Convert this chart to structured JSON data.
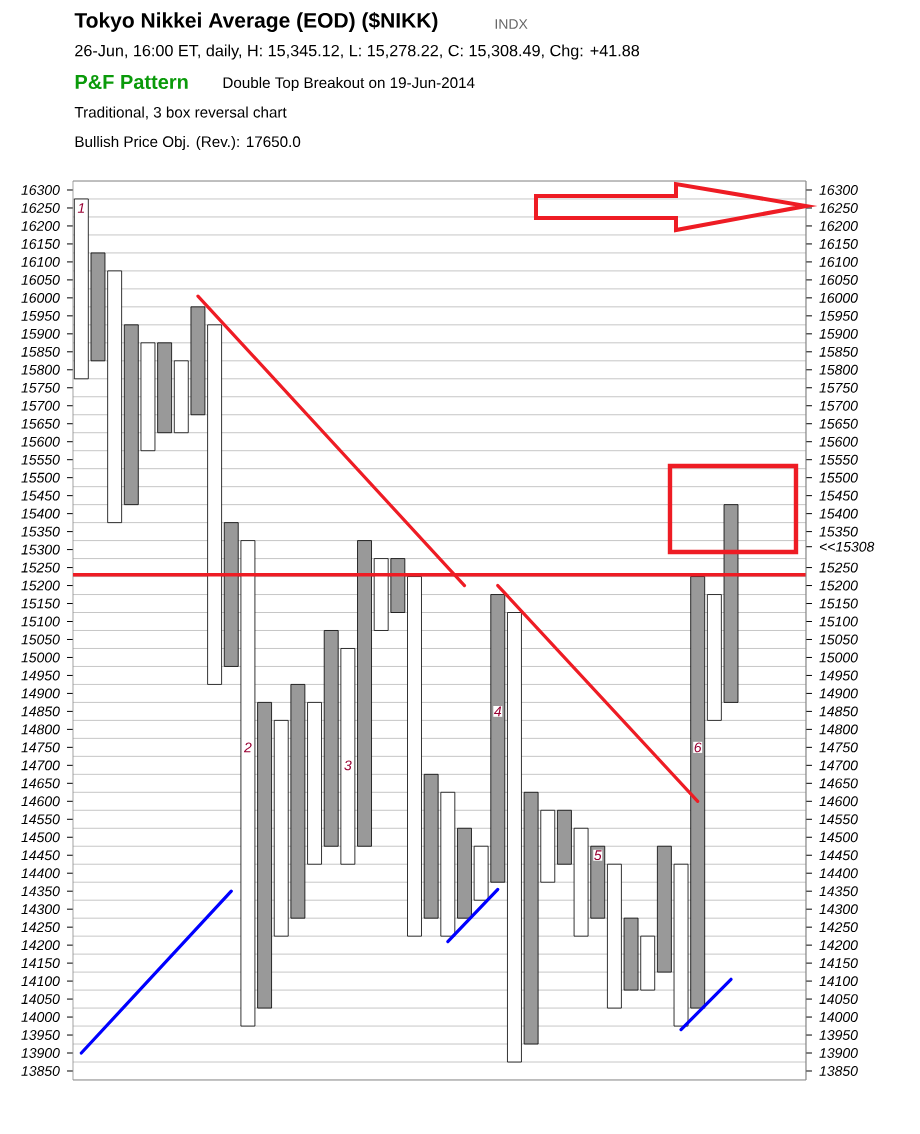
{
  "chart_data": {
    "type": "bar",
    "title": "Tokyo Nikkei Average (EOD) ($NIKK)",
    "subtitle": "26-Jun, 16:00 ET, daily, H: 15,345.12, L: 15,278.22, C: 15,308.49, Chg: +41.88",
    "annotations": [
      "INDX",
      "P&F Pattern",
      "Double Top Breakout on 19-Jun-2014",
      "Traditional, 3 box reversal chart",
      "Bullish Price Obj. (Rev.): 17650.0",
      {
        "text": "1",
        "y": 16250
      },
      {
        "text": "2",
        "y": 14750
      },
      {
        "text": "3",
        "y": 14700
      },
      {
        "text": "4",
        "y": 14850
      },
      {
        "text": "5",
        "y": 14450
      },
      {
        "text": "6",
        "y": 14750
      }
    ],
    "categories": [
      null,
      null,
      null,
      null,
      null,
      null,
      null,
      null,
      null,
      null,
      null,
      null,
      null,
      null,
      null,
      null,
      null,
      null,
      null,
      null,
      null,
      null,
      null,
      null,
      null,
      null,
      null,
      null,
      null,
      null,
      null,
      null,
      null,
      null,
      null,
      null,
      null,
      null,
      null,
      null,
      null,
      null,
      null,
      null
    ],
    "series": [
      {
        "marker": "cross",
        "color": "#000000",
        "values": [
          null,
          300,
          null,
          500,
          null,
          250,
          null,
          300,
          null,
          400,
          null,
          850,
          null,
          650,
          null,
          600,
          null,
          850,
          null,
          150,
          null,
          400,
          null,
          250,
          null,
          800,
          null,
          700,
          null,
          150,
          null,
          200,
          null,
          200,
          null,
          350,
          null,
          1200,
          null,
          550,
          null,
          null,
          null,
          null
        ],
        "base": [
          null,
          15825,
          null,
          15425,
          null,
          15625,
          null,
          15675,
          null,
          14975,
          null,
          14025,
          null,
          14275,
          null,
          14475,
          null,
          14475,
          null,
          15125,
          null,
          14275,
          null,
          14275,
          null,
          14375,
          null,
          13925,
          null,
          14425,
          null,
          14275,
          null,
          14075,
          null,
          14125,
          null,
          14025,
          null,
          14875,
          null,
          null,
          null,
          null
        ]
      },
      {
        "marker": "circle",
        "color": "#000000",
        "values": [
          500,
          null,
          700,
          null,
          300,
          null,
          200,
          null,
          1000,
          null,
          1350,
          null,
          600,
          null,
          450,
          null,
          600,
          null,
          200,
          null,
          1000,
          null,
          400,
          null,
          150,
          null,
          1250,
          null,
          200,
          null,
          300,
          null,
          400,
          null,
          150,
          null,
          450,
          null,
          350,
          null,
          null,
          null,
          null,
          null
        ],
        "base": [
          15775,
          null,
          15375,
          null,
          15575,
          null,
          15625,
          null,
          14925,
          null,
          13975,
          null,
          14225,
          null,
          14425,
          null,
          14425,
          null,
          15075,
          null,
          14225,
          null,
          14225,
          null,
          14325,
          null,
          13875,
          null,
          14375,
          null,
          14225,
          null,
          14025,
          null,
          14075,
          null,
          13975,
          null,
          14825,
          null,
          null,
          null,
          null,
          null
        ]
      },
      {
        "type": "line",
        "color": "#ee1c24",
        "values": [
          null,
          null,
          null,
          null,
          null,
          null,
          null,
          16005,
          null,
          null,
          null,
          null,
          null,
          null,
          null,
          null,
          null,
          null,
          null,
          null,
          null,
          null,
          null,
          15200,
          null,
          null,
          null,
          null,
          null,
          null,
          null,
          null,
          null,
          null,
          null,
          null,
          null,
          null,
          null,
          null,
          null,
          null,
          null,
          null
        ]
      },
      {
        "type": "line",
        "color": "#ee1c24",
        "values": [
          null,
          null,
          null,
          null,
          null,
          null,
          null,
          null,
          null,
          null,
          null,
          null,
          null,
          null,
          null,
          null,
          null,
          null,
          null,
          null,
          null,
          null,
          null,
          null,
          null,
          15200,
          null,
          null,
          null,
          null,
          null,
          null,
          null,
          null,
          null,
          null,
          null,
          14600,
          null,
          null,
          null,
          null,
          null,
          null
        ]
      },
      {
        "type": "line",
        "color": "#0000ff",
        "values": [
          13900,
          null,
          null,
          null,
          null,
          null,
          null,
          null,
          null,
          14350,
          null,
          null,
          null,
          null,
          null,
          null,
          null,
          null,
          null,
          null,
          null,
          null,
          null,
          null,
          null,
          null,
          null,
          null,
          null,
          null,
          null,
          null,
          null,
          null,
          null,
          null,
          null,
          null,
          null,
          null,
          null,
          null,
          null,
          null
        ]
      },
      {
        "type": "line",
        "color": "#0000ff",
        "values": [
          null,
          null,
          null,
          null,
          null,
          null,
          null,
          null,
          null,
          null,
          null,
          null,
          null,
          null,
          null,
          null,
          null,
          null,
          null,
          null,
          null,
          null,
          14210,
          null,
          null,
          14355,
          null,
          null,
          null,
          null,
          null,
          null,
          null,
          null,
          null,
          null,
          null,
          null,
          null,
          null,
          null,
          null,
          null,
          null
        ]
      },
      {
        "type": "line",
        "color": "#0000ff",
        "values": [
          null,
          null,
          null,
          null,
          null,
          null,
          null,
          null,
          null,
          null,
          null,
          null,
          null,
          null,
          null,
          null,
          null,
          null,
          null,
          null,
          null,
          null,
          null,
          null,
          null,
          null,
          null,
          null,
          null,
          null,
          null,
          null,
          null,
          null,
          null,
          null,
          13965,
          null,
          null,
          14105,
          null,
          null,
          null,
          null
        ]
      }
    ],
    "ref_lines": [
      {
        "axis": "y",
        "value": 15230,
        "color": "#ee1c24"
      }
    ],
    "ylim": [
      13825,
      16325
    ],
    "yticks": [
      13850,
      13900,
      13950,
      14000,
      14050,
      14100,
      14150,
      14200,
      14250,
      14300,
      14350,
      14400,
      14450,
      14500,
      14550,
      14600,
      14650,
      14700,
      14750,
      14800,
      14850,
      14900,
      14950,
      15000,
      15050,
      15100,
      15150,
      15200,
      15250,
      15300,
      15350,
      15400,
      15450,
      15500,
      15550,
      15600,
      15650,
      15700,
      15750,
      15800,
      15850,
      15900,
      15950,
      16000,
      16050,
      16100,
      16150,
      16200,
      16250,
      16300
    ],
    "y2lim": [
      13825,
      16325
    ],
    "y2ticks": [
      13850,
      13900,
      13950,
      14000,
      14050,
      14100,
      14150,
      14200,
      14250,
      14300,
      14350,
      14400,
      14450,
      14500,
      14550,
      14600,
      14650,
      14700,
      14750,
      14800,
      14850,
      14900,
      14950,
      15000,
      15050,
      15100,
      15150,
      15200,
      15250,
      {
        "value": 15308,
        "label": "<<15308"
      },
      15350,
      15400,
      15450,
      15500,
      15550,
      15600,
      15650,
      15700,
      15750,
      15800,
      15850,
      15900,
      15950,
      16000,
      16050,
      16100,
      16150,
      16200,
      16250,
      16300
    ],
    "tick_labels": "y",
    "grid": true
  }
}
